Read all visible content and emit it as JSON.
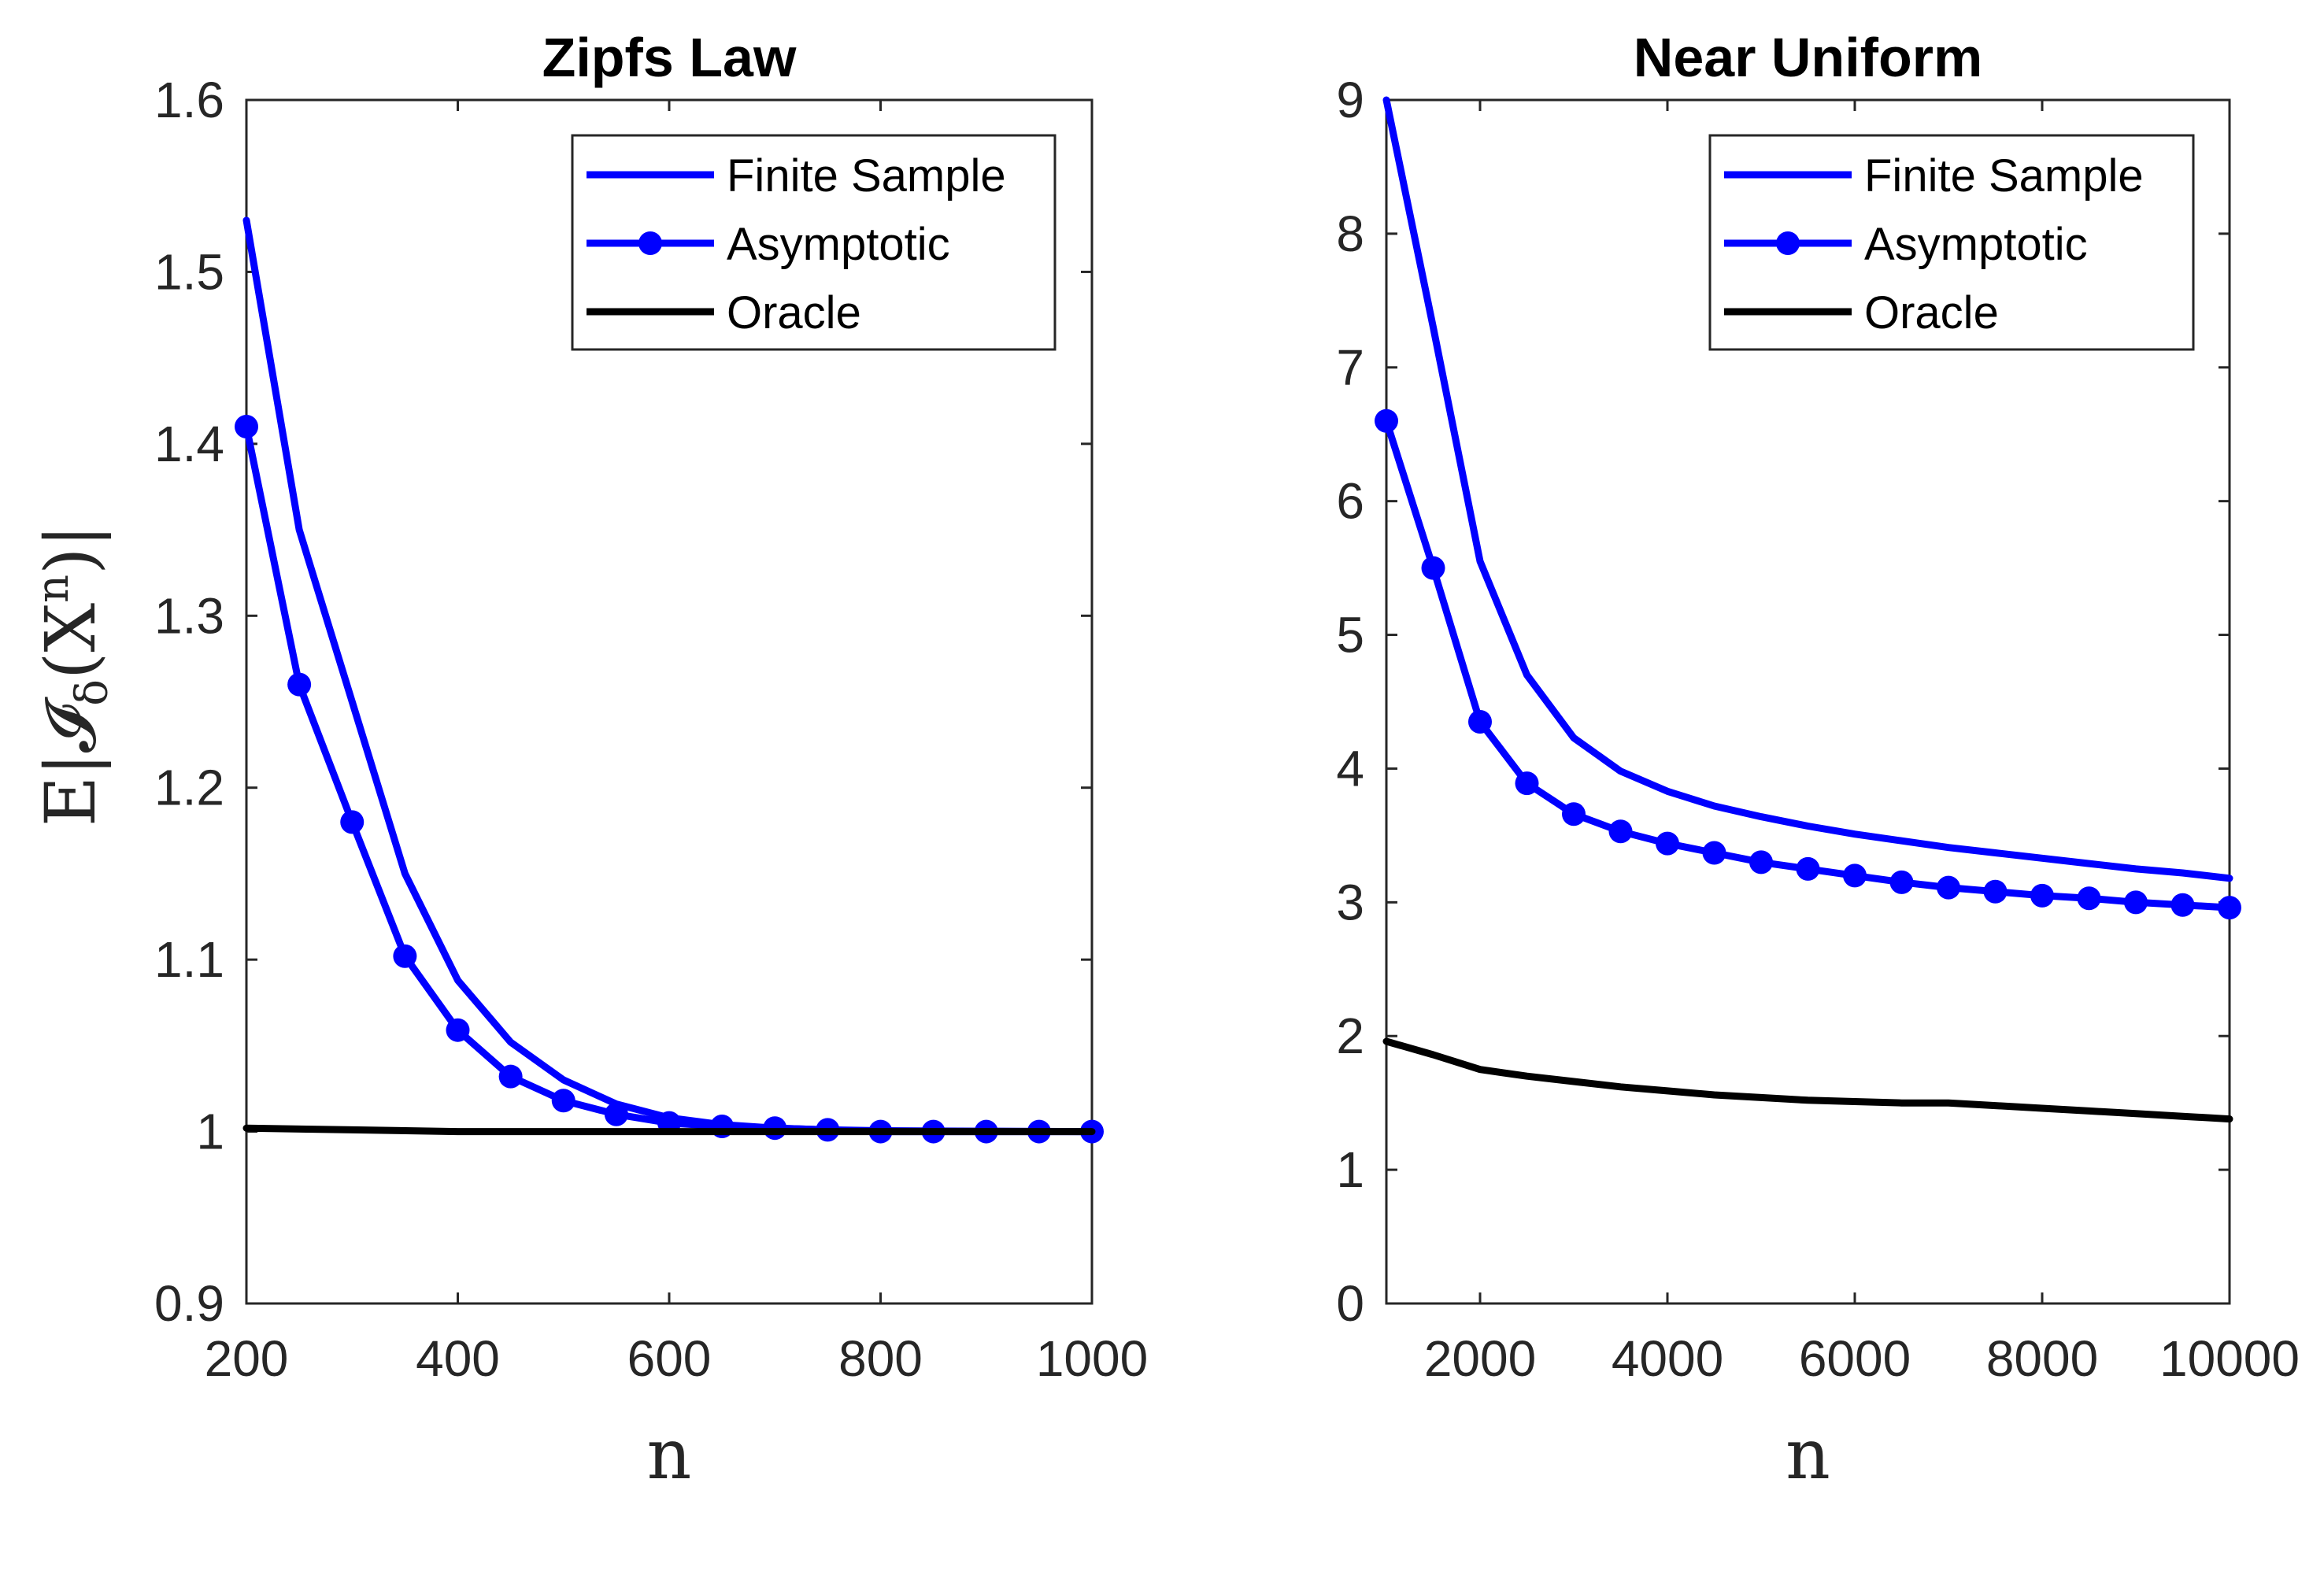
{
  "ylabel": "E|𝓘",
  "ylabel_sub": "δ",
  "ylabel_mid": "(X",
  "ylabel_sup": "n",
  "ylabel_end": ")|",
  "colors": {
    "finite": "#0000ff",
    "asymptotic": "#0000ff",
    "oracle": "#000000",
    "axis": "#262626"
  },
  "chart_data": [
    {
      "type": "line",
      "title": "Zipfs Law",
      "xlabel": "n",
      "xlim": [
        200,
        1000
      ],
      "ylim": [
        0.9,
        1.6
      ],
      "xticks": [
        "200",
        "400",
        "600",
        "800",
        "1000"
      ],
      "yticks": [
        "0.9",
        "1",
        "1.1",
        "1.2",
        "1.3",
        "1.4",
        "1.5",
        "1.6"
      ],
      "legend": {
        "position": "top-right",
        "entries": [
          "Finite Sample",
          "Asymptotic",
          "Oracle"
        ]
      },
      "series": [
        {
          "name": "Finite Sample",
          "marker": "none",
          "x": [
            200,
            250,
            300,
            350,
            400,
            450,
            500,
            550,
            600,
            650,
            700,
            750,
            800,
            850,
            900,
            950,
            1000
          ],
          "y": [
            1.53,
            1.35,
            1.25,
            1.15,
            1.088,
            1.052,
            1.03,
            1.016,
            1.008,
            1.004,
            1.002,
            1.001,
            1.0005,
            1.0003,
            1.0002,
            1.0001,
            1.0
          ]
        },
        {
          "name": "Asymptotic",
          "marker": "circle",
          "x": [
            200,
            250,
            300,
            350,
            400,
            450,
            500,
            550,
            600,
            650,
            700,
            750,
            800,
            850,
            900,
            950,
            1000
          ],
          "y": [
            1.41,
            1.26,
            1.18,
            1.102,
            1.059,
            1.032,
            1.018,
            1.01,
            1.005,
            1.003,
            1.002,
            1.001,
            1.0,
            1.0,
            1.0,
            1.0,
            1.0
          ]
        },
        {
          "name": "Oracle",
          "marker": "none",
          "x": [
            200,
            300,
            400,
            500,
            600,
            700,
            800,
            900,
            1000
          ],
          "y": [
            1.002,
            1.001,
            1.0,
            1.0,
            1.0,
            1.0,
            1.0,
            1.0,
            1.0
          ]
        }
      ]
    },
    {
      "type": "line",
      "title": "Near Uniform",
      "xlabel": "n",
      "xlim": [
        1000,
        10000
      ],
      "ylim": [
        0,
        9
      ],
      "xticks": [
        "2000",
        "4000",
        "6000",
        "8000",
        "10000"
      ],
      "yticks": [
        "0",
        "1",
        "2",
        "3",
        "4",
        "5",
        "6",
        "7",
        "8",
        "9"
      ],
      "legend": {
        "position": "top-right",
        "entries": [
          "Finite Sample",
          "Asymptotic",
          "Oracle"
        ]
      },
      "series": [
        {
          "name": "Finite Sample",
          "marker": "none",
          "x": [
            1000,
            1500,
            2000,
            2500,
            3000,
            3500,
            4000,
            4500,
            5000,
            5500,
            6000,
            6500,
            7000,
            7500,
            8000,
            8500,
            9000,
            9500,
            10000
          ],
          "y": [
            9.0,
            7.3,
            5.55,
            4.7,
            4.23,
            3.98,
            3.83,
            3.72,
            3.64,
            3.57,
            3.51,
            3.46,
            3.41,
            3.37,
            3.33,
            3.29,
            3.25,
            3.22,
            3.18
          ]
        },
        {
          "name": "Asymptotic",
          "marker": "circle",
          "x": [
            1000,
            1500,
            2000,
            2500,
            3000,
            3500,
            4000,
            4500,
            5000,
            5500,
            6000,
            6500,
            7000,
            7500,
            8000,
            8500,
            9000,
            9500,
            10000
          ],
          "y": [
            6.6,
            5.5,
            4.35,
            3.89,
            3.66,
            3.53,
            3.44,
            3.37,
            3.3,
            3.25,
            3.2,
            3.15,
            3.11,
            3.08,
            3.05,
            3.03,
            3.0,
            2.98,
            2.96
          ]
        },
        {
          "name": "Oracle",
          "marker": "none",
          "x": [
            1000,
            1500,
            2000,
            2500,
            3000,
            3500,
            4000,
            4500,
            5000,
            5500,
            6000,
            6500,
            7000,
            7500,
            8000,
            8500,
            9000,
            9500,
            10000
          ],
          "y": [
            1.96,
            1.86,
            1.75,
            1.7,
            1.66,
            1.62,
            1.59,
            1.56,
            1.54,
            1.52,
            1.51,
            1.5,
            1.5,
            1.48,
            1.46,
            1.44,
            1.42,
            1.4,
            1.38
          ]
        }
      ]
    }
  ]
}
